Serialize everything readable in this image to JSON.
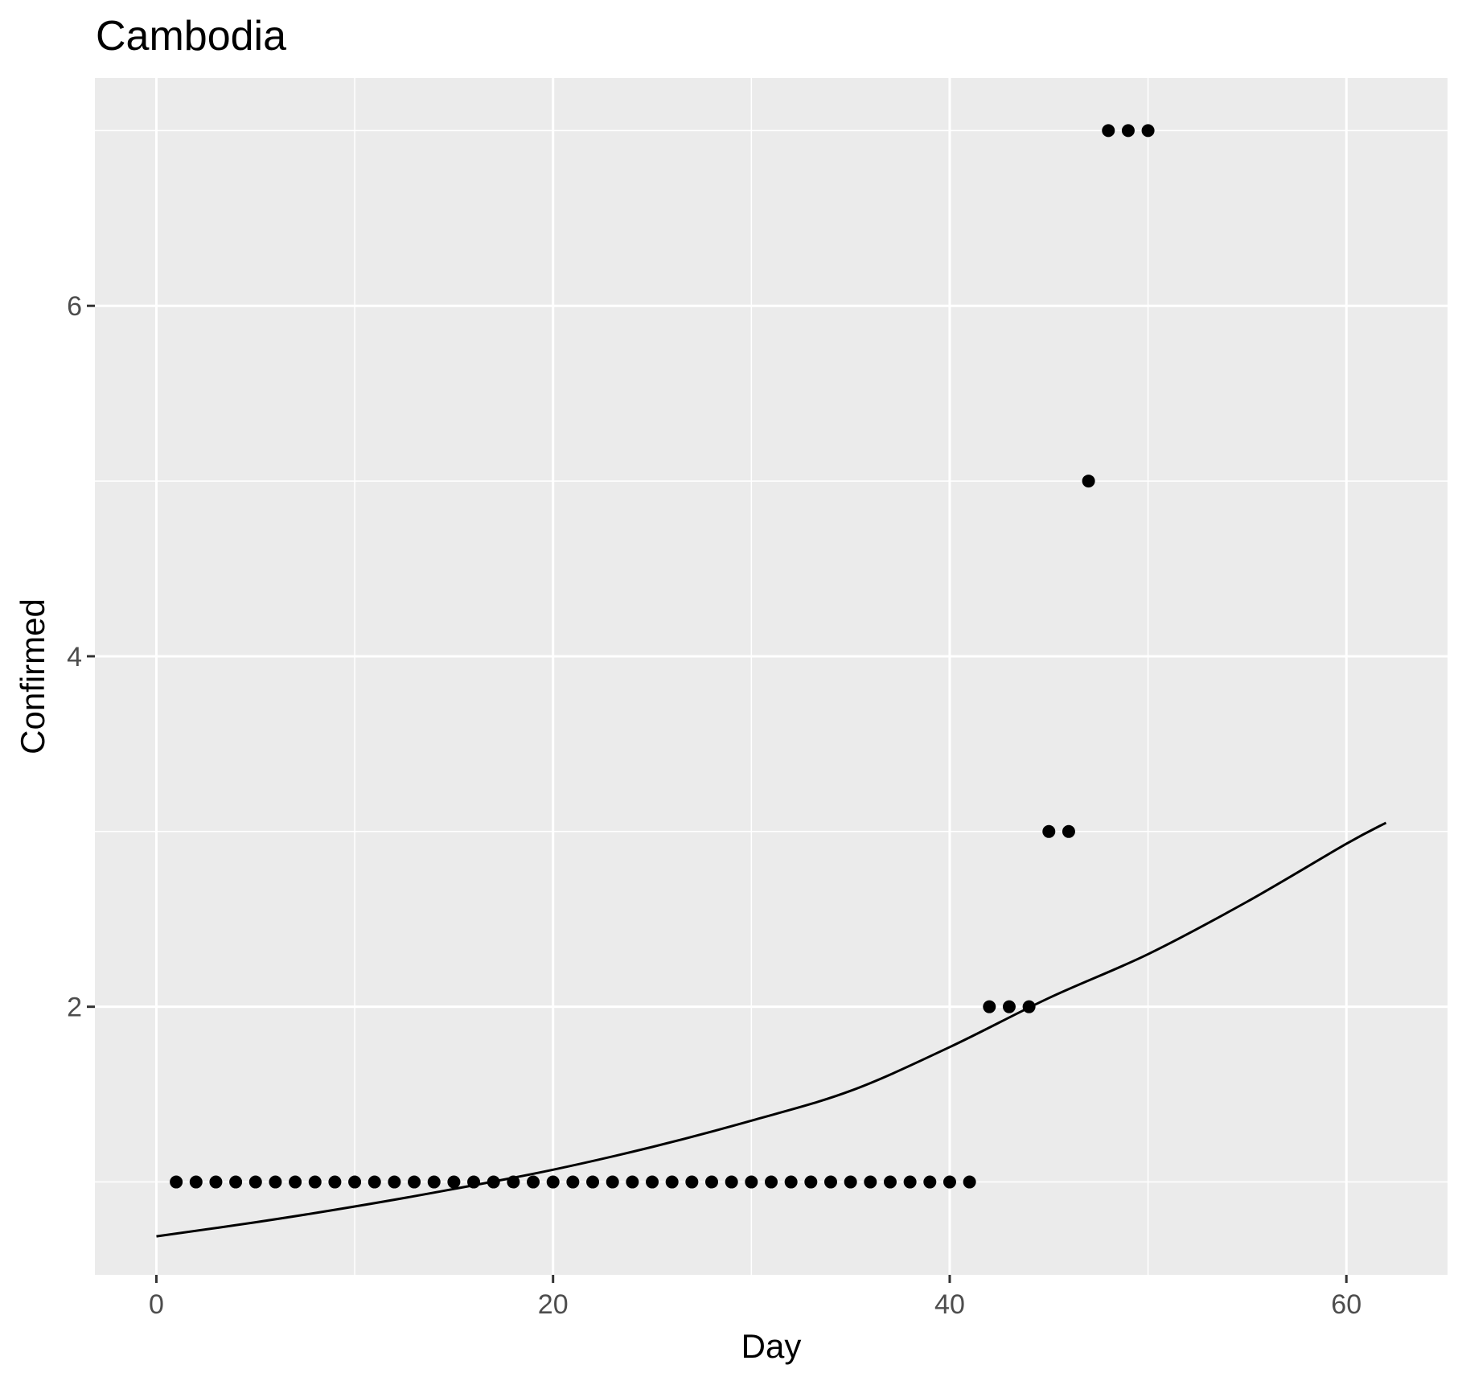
{
  "chart_data": {
    "type": "scatter",
    "title": "Cambodia",
    "xlabel": "Day",
    "ylabel": "Confirmed",
    "xlim": [
      -3.1,
      65.1
    ],
    "ylim": [
      0.47,
      7.3
    ],
    "x_major_ticks": [
      0,
      20,
      40,
      60
    ],
    "x_major_tick_labels": [
      "0",
      "20",
      "40",
      "60"
    ],
    "y_major_ticks": [
      2,
      4,
      6
    ],
    "y_major_tick_labels": [
      "2",
      "4",
      "6"
    ],
    "x_minor_ticks": [
      10,
      30,
      50
    ],
    "y_minor_ticks": [
      1,
      3,
      5,
      7
    ],
    "grid": true,
    "legend": "none",
    "colors": {
      "panel": "#ebebeb",
      "grid": "#ffffff",
      "points": "#000000",
      "line": "#000000",
      "ticks": "#333333"
    },
    "points": {
      "x": [
        1,
        2,
        3,
        4,
        5,
        6,
        7,
        8,
        9,
        10,
        11,
        12,
        13,
        14,
        15,
        16,
        17,
        18,
        19,
        20,
        21,
        22,
        23,
        24,
        25,
        26,
        27,
        28,
        29,
        30,
        31,
        32,
        33,
        34,
        35,
        36,
        37,
        38,
        39,
        40,
        41,
        42,
        43,
        44,
        45,
        46,
        47,
        48,
        49,
        50
      ],
      "y": [
        1,
        1,
        1,
        1,
        1,
        1,
        1,
        1,
        1,
        1,
        1,
        1,
        1,
        1,
        1,
        1,
        1,
        1,
        1,
        1,
        1,
        1,
        1,
        1,
        1,
        1,
        1,
        1,
        1,
        1,
        1,
        1,
        1,
        1,
        1,
        1,
        1,
        1,
        1,
        1,
        1,
        2,
        2,
        2,
        3,
        3,
        5,
        7,
        7,
        7
      ]
    },
    "fit_line": {
      "x": [
        0,
        5,
        10,
        15,
        20,
        25,
        30,
        35,
        40,
        45,
        50,
        55,
        60,
        62
      ],
      "y": [
        0.69,
        0.77,
        0.86,
        0.96,
        1.07,
        1.2,
        1.35,
        1.52,
        1.77,
        2.05,
        2.3,
        2.6,
        2.93,
        3.05
      ]
    }
  }
}
